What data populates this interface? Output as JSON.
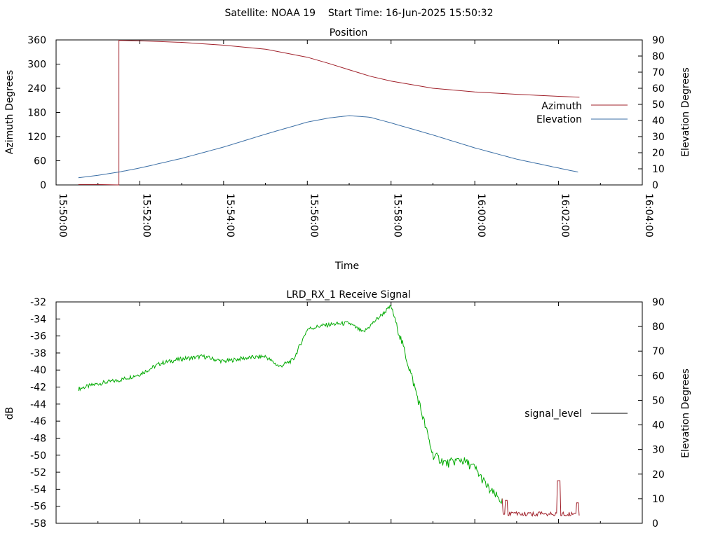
{
  "header": {
    "title": "Satellite: NOAA 19    Start Time: 16-Jun-2025 15:50:32"
  },
  "chart_data": [
    {
      "type": "line",
      "title": "Position",
      "xlabel": "Time",
      "ylabel": "Azimuth Degrees",
      "y2label": "Elevation Degrees",
      "xlim": [
        "15:50:00",
        "16:04:00"
      ],
      "ylim": [
        0,
        360
      ],
      "y2lim": [
        0,
        90
      ],
      "x_ticks": [
        "15:50:00",
        "15:52:00",
        "15:54:00",
        "15:56:00",
        "15:58:00",
        "16:00:00",
        "16:02:00",
        "16:04:00"
      ],
      "y_ticks": [
        "0",
        "60",
        "120",
        "180",
        "240",
        "300",
        "360"
      ],
      "y2_ticks": [
        "0",
        "10",
        "20",
        "30",
        "40",
        "50",
        "60",
        "70",
        "80",
        "90"
      ],
      "legend_position": "right",
      "grid": false,
      "series": [
        {
          "name": "Azimuth",
          "axis": "y",
          "color": "#a0202a",
          "x": [
            "15:50:32",
            "15:51:00",
            "15:51:30",
            "15:51:30",
            "15:52:00",
            "15:53:00",
            "15:54:00",
            "15:55:00",
            "15:56:00",
            "15:56:30",
            "15:57:00",
            "15:57:30",
            "15:58:00",
            "15:59:00",
            "16:00:00",
            "16:01:00",
            "16:02:00",
            "16:02:30"
          ],
          "values": [
            1,
            1,
            0,
            359,
            358,
            354,
            347,
            337,
            317,
            302,
            286,
            270,
            258,
            240,
            231,
            225,
            220,
            218
          ]
        },
        {
          "name": "Elevation",
          "axis": "y2",
          "color": "#3a6ea5",
          "x": [
            "15:50:32",
            "15:51:00",
            "15:51:30",
            "15:52:00",
            "15:53:00",
            "15:54:00",
            "15:55:00",
            "15:56:00",
            "15:56:30",
            "15:57:00",
            "15:57:30",
            "15:58:00",
            "15:59:00",
            "16:00:00",
            "16:01:00",
            "16:02:00",
            "16:02:30"
          ],
          "values": [
            4.5,
            6,
            8,
            10.5,
            16.5,
            23.5,
            31.5,
            39,
            41.5,
            43,
            42,
            38.5,
            31,
            23,
            16,
            10.5,
            7.8
          ]
        }
      ]
    },
    {
      "type": "line",
      "title": "LRD_RX_1 Receive Signal",
      "xlabel": "",
      "ylabel": "dB",
      "y2label": "Elevation Degrees",
      "xlim": [
        "15:50:00",
        "16:04:00"
      ],
      "ylim": [
        -58,
        -32
      ],
      "y2lim": [
        0,
        90
      ],
      "y_ticks": [
        "-32",
        "-34",
        "-36",
        "-38",
        "-40",
        "-42",
        "-44",
        "-46",
        "-48",
        "-50",
        "-52",
        "-54",
        "-56",
        "-58"
      ],
      "y2_ticks": [
        "0",
        "10",
        "20",
        "30",
        "40",
        "50",
        "60",
        "70",
        "80",
        "90"
      ],
      "legend_position": "right",
      "grid": false,
      "series": [
        {
          "name": "signal_level",
          "color": "#000000",
          "x": [
            "15:50:32",
            "15:51:00",
            "15:51:30",
            "15:52:00",
            "15:52:30",
            "15:53:00",
            "15:53:30",
            "15:54:00",
            "15:54:30",
            "15:55:00",
            "15:55:20",
            "15:55:40",
            "15:56:00",
            "15:56:20",
            "15:56:40",
            "15:57:00",
            "15:57:20",
            "15:57:40",
            "15:58:00",
            "15:58:20",
            "15:58:40",
            "15:59:00",
            "15:59:20",
            "15:59:40",
            "16:00:00",
            "16:00:20",
            "16:00:40",
            "16:01:00",
            "16:01:30",
            "16:02:00",
            "16:02:30"
          ],
          "values": [
            -42.2,
            -41.6,
            -41.2,
            -40.5,
            -39.2,
            -38.7,
            -38.4,
            -39.0,
            -38.6,
            -38.4,
            -39.6,
            -38.8,
            -35.2,
            -34.8,
            -34.6,
            -34.5,
            -35.6,
            -34.0,
            -32.5,
            -38.0,
            -43.8,
            -50.0,
            -51.0,
            -50.5,
            -51.5,
            -54.0,
            -55.5,
            -56.5,
            -56.8,
            -56.8,
            -56.8
          ]
        }
      ],
      "signal_colors": {
        "high": "#00aa00",
        "low": "#a0202a"
      }
    }
  ]
}
